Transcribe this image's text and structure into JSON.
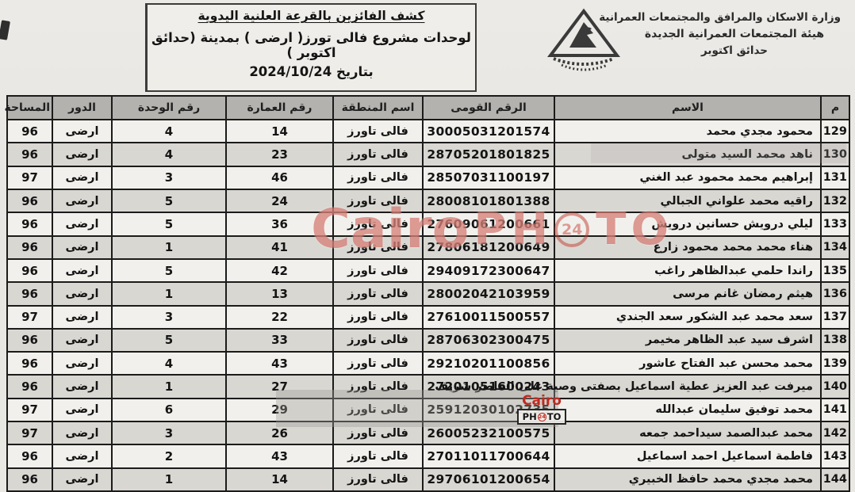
{
  "header": {
    "agency_lines": [
      "وزارة الاسكان والمرافق والمجتمعات العمرانية",
      "هيئة المجتمعات العمرانية الجديدة",
      "حدائق اكتوبر"
    ],
    "title_lines": [
      "كشف الفائزين بالقرعة العلنية اليدوية",
      "لوحدات مشروع فالى تورز( ارضى ) بمدينة (حدائق اكتوبر )",
      "بتاريخ 2024/10/24"
    ]
  },
  "watermarks": {
    "brand": "Cairo",
    "ph": "PH",
    "badge": "24",
    "to": "TO"
  },
  "colors": {
    "watermark_red": "#bf3b30",
    "table_header_bg": "#b4b2ae",
    "row_alt_bg": "#d9d7d2",
    "border_black": "#1b1b1b"
  },
  "table": {
    "columns": [
      "م",
      "الاسم",
      "الرقم القومى",
      "اسم المنطقة",
      "رقم العمارة",
      "رقم الوحدة",
      "الدور",
      "المساحة"
    ],
    "rows": [
      {
        "no": "129",
        "name": "محمود مجدي محمد",
        "national_id": "30005031201574",
        "district": "فالى تاورز",
        "building": "14",
        "unit": "4",
        "floor": "ارضى",
        "area": "96"
      },
      {
        "no": "130",
        "name": "ناهد محمد السيد متولى",
        "national_id": "28705201801825",
        "district": "فالى تاورز",
        "building": "23",
        "unit": "4",
        "floor": "ارضى",
        "area": "96"
      },
      {
        "no": "131",
        "name": "إبراهيم محمد محمود عبد الغني",
        "national_id": "28507031100197",
        "district": "فالى تاورز",
        "building": "46",
        "unit": "3",
        "floor": "ارضى",
        "area": "97"
      },
      {
        "no": "132",
        "name": "راقيه محمد علواني الجبالي",
        "national_id": "28008101801388",
        "district": "فالى تاورز",
        "building": "24",
        "unit": "5",
        "floor": "ارضى",
        "area": "96"
      },
      {
        "no": "133",
        "name": "ليلي درويش حسانين درويش",
        "national_id": "27609061200661",
        "district": "فالى تاورز",
        "building": "36",
        "unit": "5",
        "floor": "ارضى",
        "area": "96"
      },
      {
        "no": "134",
        "name": "هناء محمد محمد محمود زارع",
        "national_id": "27806181200649",
        "district": "فالى تاورز",
        "building": "41",
        "unit": "1",
        "floor": "ارضى",
        "area": "96"
      },
      {
        "no": "135",
        "name": "راندا حلمي عبدالظاهر راغب",
        "national_id": "29409172300647",
        "district": "فالى تاورز",
        "building": "42",
        "unit": "5",
        "floor": "ارضى",
        "area": "96"
      },
      {
        "no": "136",
        "name": "هيثم رمضان غانم مرسى",
        "national_id": "28002042103959",
        "district": "فالى تاورز",
        "building": "13",
        "unit": "1",
        "floor": "ارضى",
        "area": "96"
      },
      {
        "no": "137",
        "name": "سعد محمد عبد الشكور سعد الجندي",
        "national_id": "27610011500557",
        "district": "فالى تاورز",
        "building": "22",
        "unit": "3",
        "floor": "ارضى",
        "area": "97"
      },
      {
        "no": "138",
        "name": "اشرف سيد عبد الظاهر مخيمر",
        "national_id": "28706302300475",
        "district": "فالى تاورز",
        "building": "33",
        "unit": "5",
        "floor": "ارضى",
        "area": "96"
      },
      {
        "no": "139",
        "name": "محمد محسن عبد الفتاح عاشور",
        "national_id": "29210201100856",
        "district": "فالى تاورز",
        "building": "43",
        "unit": "4",
        "floor": "ارضى",
        "area": "96"
      },
      {
        "no": "140",
        "name": "ميرفت عبد العزيز عطية اسماعيل بصفتى وصية على القاصر شريف",
        "national_id": "27201051600243",
        "district": "فالى تاورز",
        "building": "27",
        "unit": "1",
        "floor": "ارضى",
        "area": "96"
      },
      {
        "no": "141",
        "name": "محمد توفيق سليمان عبدالله",
        "national_id": "25912030102735",
        "district": "فالى تاورز",
        "building": "29",
        "unit": "6",
        "floor": "ارضى",
        "area": "97"
      },
      {
        "no": "142",
        "name": "محمد عبدالصمد سيداحمد جمعه",
        "national_id": "26005232100575",
        "district": "فالى تاورز",
        "building": "26",
        "unit": "3",
        "floor": "ارضى",
        "area": "97"
      },
      {
        "no": "143",
        "name": "فاطمة اسماعيل احمد اسماعيل",
        "national_id": "27011011700644",
        "district": "فالى تاورز",
        "building": "43",
        "unit": "2",
        "floor": "ارضى",
        "area": "96"
      },
      {
        "no": "144",
        "name": "محمد مجدي محمد حافظ الخبيري",
        "national_id": "29706101200654",
        "district": "فالى تاورز",
        "building": "14",
        "unit": "1",
        "floor": "ارضى",
        "area": "96"
      }
    ]
  }
}
